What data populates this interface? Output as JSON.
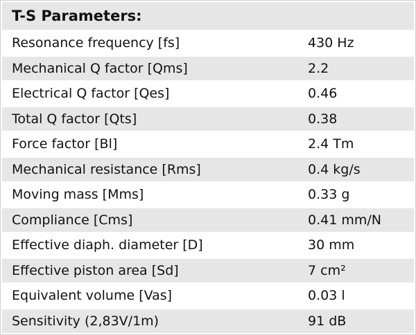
{
  "header": {
    "title": "T-S Parameters:"
  },
  "table": {
    "rows": [
      [
        "Resonance frequency [fs]",
        "430 Hz"
      ],
      [
        "Mechanical Q factor [Qms]",
        "2.2"
      ],
      [
        "Electrical Q factor [Qes]",
        "0.46"
      ],
      [
        "Total Q factor [Qts]",
        "0.38"
      ],
      [
        "Force factor [Bl]",
        "2.4 Tm"
      ],
      [
        "Mechanical resistance [Rms]",
        "0.4 kg/s"
      ],
      [
        "Moving mass [Mms]",
        "0.33 g"
      ],
      [
        "Compliance [Cms]",
        "0.41 mm/N"
      ],
      [
        "Effective diaph. diameter [D]",
        "30 mm"
      ],
      [
        "Effective piston area [Sd]",
        "7 cm²"
      ],
      [
        "Equivalent volume [Vas]",
        "0.03 l"
      ],
      [
        "Sensitivity (2,83V/1m)",
        "91 dB"
      ]
    ]
  }
}
